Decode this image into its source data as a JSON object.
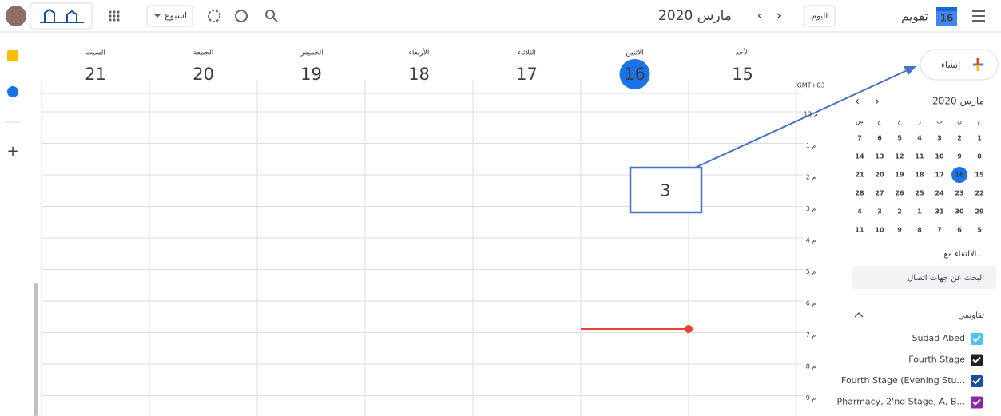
{
  "header": {
    "app_name": "تقويم",
    "logo_day": "16",
    "today_button": "اليوم",
    "period": "مارس 2020",
    "view": "اسبوع"
  },
  "timezone": "GMT+03",
  "days": [
    {
      "name": "الأحد",
      "date": "15"
    },
    {
      "name": "الاثنين",
      "date": "16"
    },
    {
      "name": "الثلاثاء",
      "date": "17"
    },
    {
      "name": "الأربعاء",
      "date": "18"
    },
    {
      "name": "الخميس",
      "date": "19"
    },
    {
      "name": "الجمعة",
      "date": "20"
    },
    {
      "name": "السبت",
      "date": "21"
    }
  ],
  "hours": [
    "12 م",
    "1 م",
    "2 م",
    "3 م",
    "4 م",
    "5 م",
    "6 م",
    "7 م",
    "8 م",
    "9 م"
  ],
  "create_button": "إنشاء",
  "mini_calendar": {
    "title": "مارس 2020",
    "weekdays": [
      "ح",
      "ن",
      "ث",
      "ر",
      "خ",
      "ج",
      "س"
    ],
    "weeks": [
      [
        "1",
        "2",
        "3",
        "4",
        "5",
        "6",
        "7"
      ],
      [
        "8",
        "9",
        "10",
        "11",
        "12",
        "13",
        "14"
      ],
      [
        "15",
        "16",
        "17",
        "18",
        "19",
        "20",
        "21"
      ],
      [
        "22",
        "23",
        "24",
        "25",
        "26",
        "27",
        "28"
      ],
      [
        "29",
        "30",
        "31",
        "1",
        "2",
        "3",
        "4"
      ],
      [
        "5",
        "6",
        "7",
        "8",
        "9",
        "10",
        "11"
      ]
    ]
  },
  "meet_with": "الالتقاء مع...",
  "search_contacts": "البحث عن جهات اتصال",
  "my_calendars": {
    "title": "تقاويمي",
    "items": [
      {
        "name": "Sudad Abed",
        "color": "#4fc3f7"
      },
      {
        "name": "Fourth Stage",
        "color": "#202124"
      },
      {
        "name": "Fourth Stage (Evening Stu...",
        "color": "#1a4fa0"
      },
      {
        "name": "Pharmacy, 2'nd Stage, A, B...",
        "color": "#8e24aa"
      }
    ]
  },
  "annotation": {
    "label": "3"
  }
}
